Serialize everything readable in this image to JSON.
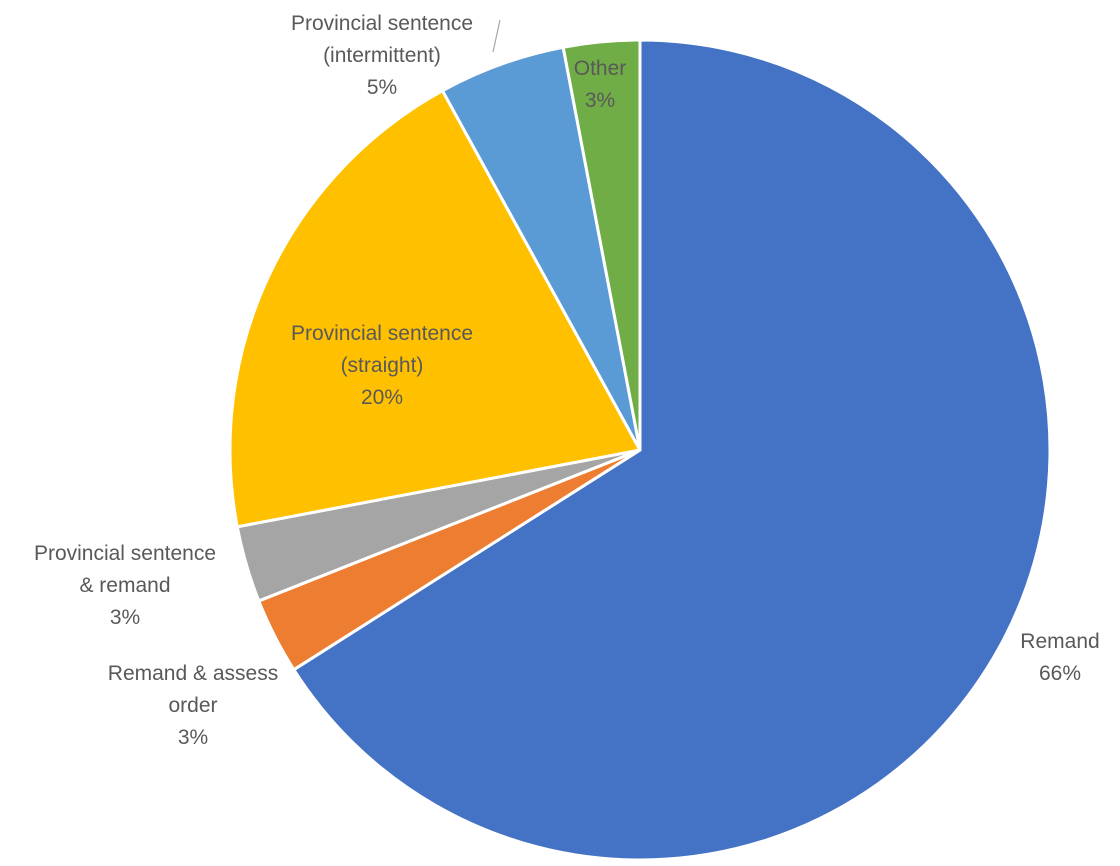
{
  "chart_data": {
    "type": "pie",
    "title": "",
    "start_angle_deg": 0,
    "direction": "clockwise",
    "slices": [
      {
        "label_lines": [
          "Remand"
        ],
        "pct_label": "66%",
        "value": 66,
        "color": "#4472C4"
      },
      {
        "label_lines": [
          "Remand & assess",
          "order"
        ],
        "pct_label": "3%",
        "value": 3,
        "color": "#ED7D31"
      },
      {
        "label_lines": [
          "Provincial sentence",
          "& remand"
        ],
        "pct_label": "3%",
        "value": 3,
        "color": "#A5A5A5"
      },
      {
        "label_lines": [
          "Provincial sentence",
          "(straight)"
        ],
        "pct_label": "20%",
        "value": 20,
        "color": "#FFC000"
      },
      {
        "label_lines": [
          "Provincial sentence",
          "(intermittent)"
        ],
        "pct_label": "5%",
        "value": 5,
        "color": "#5B9BD5"
      },
      {
        "label_lines": [
          "Other"
        ],
        "pct_label": "3%",
        "value": 3,
        "color": "#70AD47"
      }
    ],
    "legend": "none",
    "border_color": "#ffffff",
    "label_color": "#595959"
  }
}
